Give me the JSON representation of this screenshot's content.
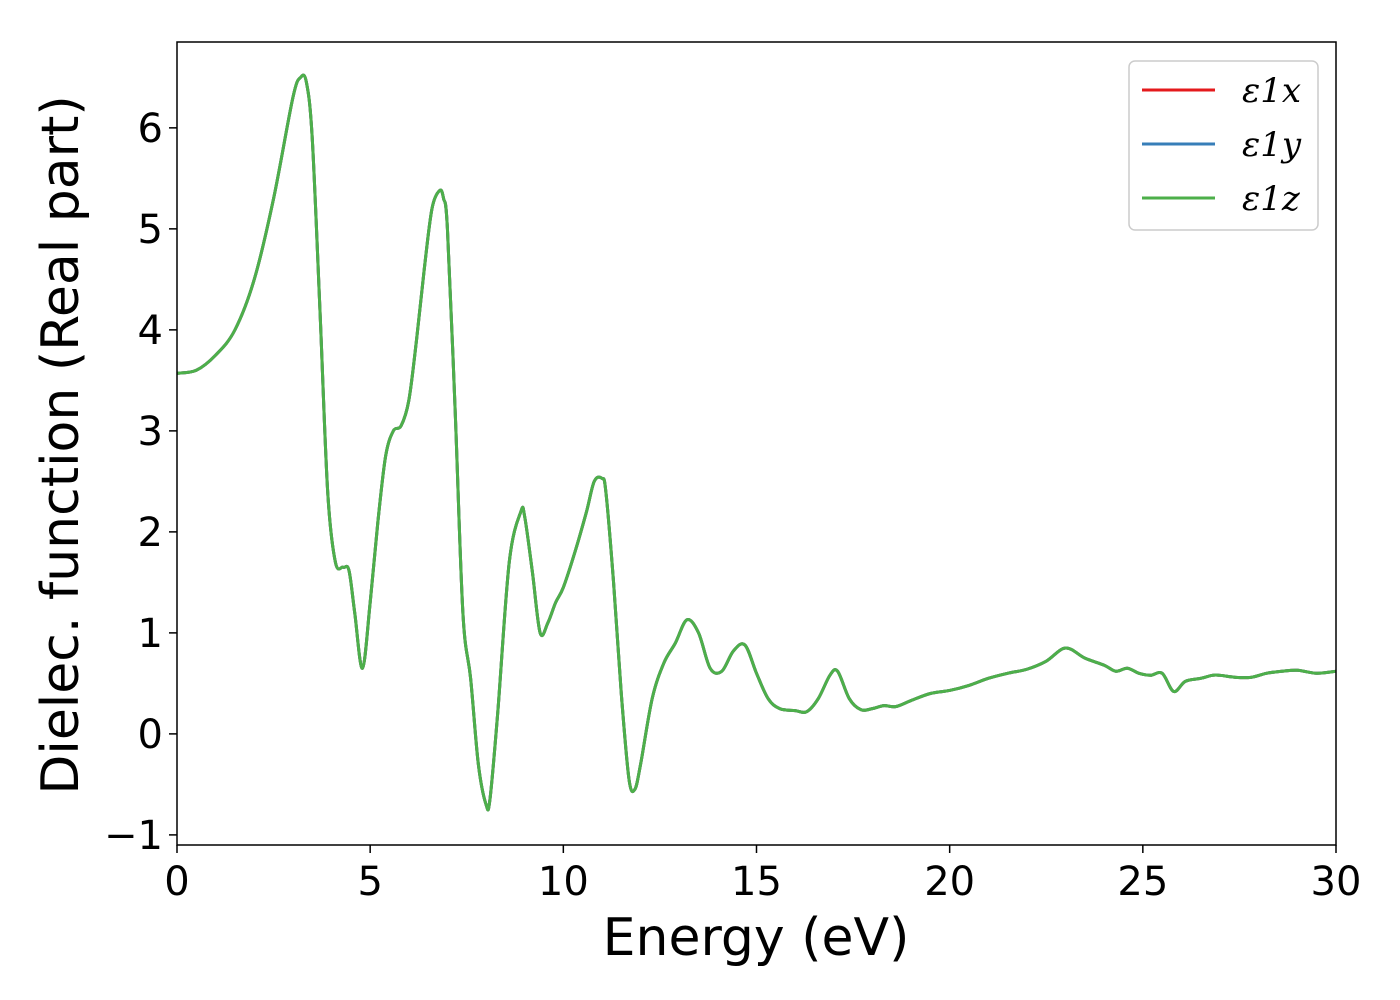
{
  "chart_data": {
    "type": "line",
    "title": "",
    "xlabel": "Energy (eV)",
    "ylabel": "Dielec. function (Real part)",
    "xlim": [
      0,
      30
    ],
    "ylim": [
      -1.1,
      6.85
    ],
    "xticks": [
      0,
      5,
      10,
      15,
      20,
      25,
      30
    ],
    "xtick_labels": [
      "0",
      "5",
      "10",
      "15",
      "20",
      "25",
      "30"
    ],
    "yticks": [
      -1,
      0,
      1,
      2,
      3,
      4,
      5,
      6
    ],
    "ytick_labels": [
      "−1",
      "0",
      "1",
      "2",
      "3",
      "4",
      "5",
      "6"
    ],
    "grid": false,
    "legend_position": "top-right",
    "series": [
      {
        "name": "ε1x",
        "color": "#e41a1c"
      },
      {
        "name": "ε1y",
        "color": "#377eb8"
      },
      {
        "name": "ε1z",
        "color": "#4daf4a"
      }
    ],
    "x": [
      0,
      0.5,
      1.0,
      1.5,
      2.0,
      2.5,
      3.0,
      3.2,
      3.35,
      3.5,
      3.7,
      3.9,
      4.1,
      4.3,
      4.45,
      4.6,
      4.8,
      5.0,
      5.2,
      5.4,
      5.6,
      5.8,
      6.0,
      6.2,
      6.4,
      6.6,
      6.8,
      6.9,
      7.0,
      7.2,
      7.4,
      7.6,
      7.8,
      8.0,
      8.1,
      8.3,
      8.6,
      8.9,
      9.0,
      9.2,
      9.4,
      9.6,
      9.8,
      10.0,
      10.3,
      10.6,
      10.8,
      11.0,
      11.1,
      11.3,
      11.5,
      11.7,
      11.85,
      12.0,
      12.3,
      12.6,
      12.9,
      13.2,
      13.5,
      13.8,
      14.1,
      14.4,
      14.7,
      15.0,
      15.3,
      15.6,
      16.0,
      16.3,
      16.6,
      16.9,
      17.1,
      17.4,
      17.7,
      18.0,
      18.3,
      18.6,
      19.0,
      19.5,
      20.0,
      20.5,
      21.0,
      21.5,
      22.0,
      22.5,
      23.0,
      23.5,
      24.0,
      24.3,
      24.6,
      24.9,
      25.2,
      25.5,
      25.8,
      26.1,
      26.5,
      26.8,
      27.0,
      27.4,
      27.8,
      28.2,
      28.6,
      29.0,
      29.5,
      30.0
    ],
    "y": [
      3.57,
      3.6,
      3.75,
      4.0,
      4.5,
      5.3,
      6.3,
      6.5,
      6.45,
      5.9,
      4.2,
      2.4,
      1.7,
      1.65,
      1.62,
      1.2,
      0.65,
      1.3,
      2.1,
      2.75,
      3.0,
      3.05,
      3.3,
      3.9,
      4.6,
      5.2,
      5.38,
      5.3,
      5.0,
      3.2,
      1.2,
      0.55,
      -0.3,
      -0.7,
      -0.65,
      0.2,
      1.7,
      2.2,
      2.15,
      1.6,
      1.0,
      1.1,
      1.3,
      1.45,
      1.8,
      2.2,
      2.5,
      2.53,
      2.4,
      1.5,
      0.4,
      -0.45,
      -0.55,
      -0.3,
      0.35,
      0.7,
      0.9,
      1.13,
      1.0,
      0.65,
      0.62,
      0.82,
      0.88,
      0.6,
      0.35,
      0.25,
      0.23,
      0.22,
      0.35,
      0.58,
      0.62,
      0.35,
      0.24,
      0.25,
      0.28,
      0.27,
      0.33,
      0.4,
      0.43,
      0.48,
      0.55,
      0.6,
      0.64,
      0.72,
      0.85,
      0.75,
      0.68,
      0.62,
      0.65,
      0.6,
      0.58,
      0.6,
      0.42,
      0.52,
      0.55,
      0.58,
      0.58,
      0.56,
      0.56,
      0.6,
      0.62,
      0.63,
      0.6,
      0.62
    ]
  }
}
